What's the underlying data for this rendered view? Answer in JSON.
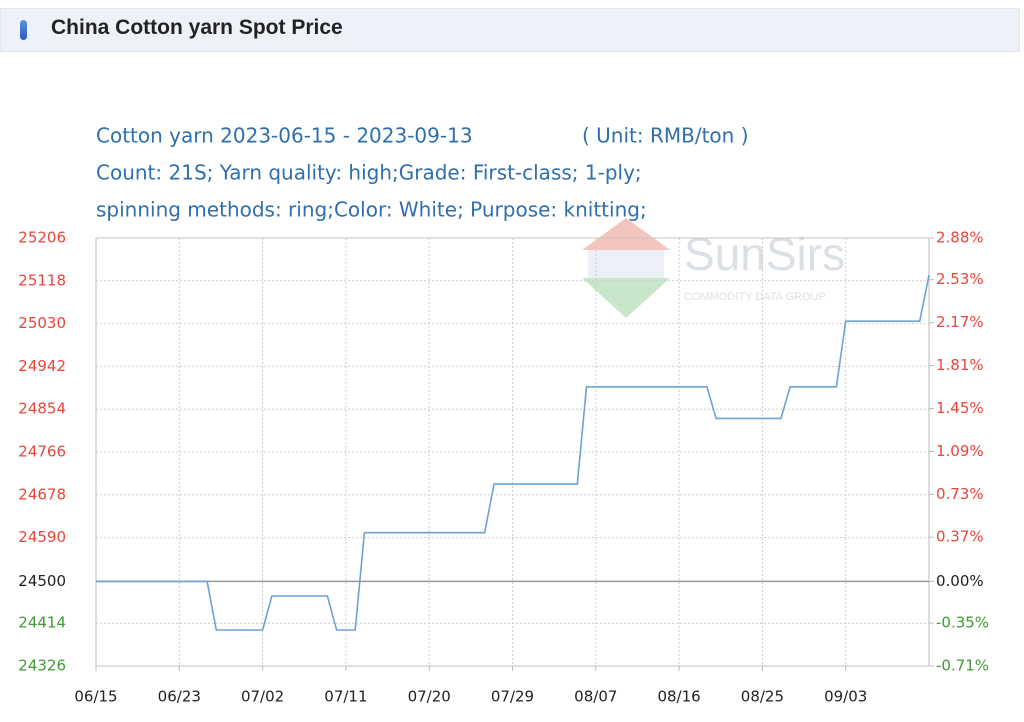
{
  "header": {
    "title": "China Cotton yarn Spot Price"
  },
  "chart_data": {
    "type": "line",
    "title": "Cotton yarn 2023-06-15 - 2023-09-13",
    "unit": "( Unit: RMB/ton )",
    "subtitle_lines": [
      "Count: 21S; Yarn quality: high;Grade: First-class; 1-ply;",
      "spinning methods: ring;Color: White; Purpose: knitting;"
    ],
    "watermark": {
      "brand": "SunSirs",
      "tagline": "COMMODITY DATA GROUP"
    },
    "categories": [
      "06/15",
      null,
      null,
      null,
      null,
      null,
      null,
      null,
      null,
      "06/23",
      null,
      null,
      null,
      null,
      null,
      null,
      null,
      null,
      "07/02",
      null,
      null,
      null,
      null,
      null,
      null,
      null,
      null,
      "07/11",
      null,
      null,
      null,
      null,
      null,
      null,
      null,
      null,
      "07/20",
      null,
      null,
      null,
      null,
      null,
      null,
      null,
      null,
      "07/29",
      null,
      null,
      null,
      null,
      null,
      null,
      null,
      null,
      "08/07",
      null,
      null,
      null,
      null,
      null,
      null,
      null,
      null,
      "08/16",
      null,
      null,
      null,
      null,
      null,
      null,
      null,
      null,
      "08/25",
      null,
      null,
      null,
      null,
      null,
      null,
      null,
      null,
      "09/03",
      null,
      null,
      null,
      null,
      null,
      null,
      null,
      null,
      null
    ],
    "values": [
      24500,
      24500,
      24500,
      24500,
      24500,
      24500,
      24500,
      24500,
      24500,
      24500,
      24500,
      24500,
      24500,
      24400,
      24400,
      24400,
      24400,
      24400,
      24400,
      24470,
      24470,
      24470,
      24470,
      24470,
      24470,
      24470,
      24400,
      24400,
      24400,
      24600,
      24600,
      24600,
      24600,
      24600,
      24600,
      24600,
      24600,
      24600,
      24600,
      24600,
      24600,
      24600,
      24600,
      24700,
      24700,
      24700,
      24700,
      24700,
      24700,
      24700,
      24700,
      24700,
      24700,
      24900,
      24900,
      24900,
      24900,
      24900,
      24900,
      24900,
      24900,
      24900,
      24900,
      24900,
      24900,
      24900,
      24900,
      24835,
      24835,
      24835,
      24835,
      24835,
      24835,
      24835,
      24835,
      24900,
      24900,
      24900,
      24900,
      24900,
      24900,
      25035,
      25035,
      25035,
      25035,
      25035,
      25035,
      25035,
      25035,
      25035,
      25130
    ],
    "color": "#6ea2d6",
    "ylim": [
      24326,
      25206
    ],
    "yticks": [
      24326,
      24414,
      24500,
      24590,
      24678,
      24766,
      24854,
      24942,
      25030,
      25118,
      25206
    ],
    "y2lim": [
      -0.71,
      2.88
    ],
    "y2ticks": [
      {
        "value": -0.71,
        "label": "-0.71%"
      },
      {
        "value": -0.35,
        "label": "-0.35%"
      },
      {
        "value": 0,
        "label": "0.00%"
      },
      {
        "value": 0.37,
        "label": "0.37%"
      },
      {
        "value": 0.73,
        "label": "0.73%"
      },
      {
        "value": 1.09,
        "label": "1.09%"
      },
      {
        "value": 1.45,
        "label": "1.45%"
      },
      {
        "value": 1.81,
        "label": "1.81%"
      },
      {
        "value": 2.17,
        "label": "2.17%"
      },
      {
        "value": 2.53,
        "label": "2.53%"
      },
      {
        "value": 2.88,
        "label": "2.88%"
      }
    ],
    "up_color": "#e8453c",
    "down_color": "#3f9b35",
    "grid": true
  }
}
